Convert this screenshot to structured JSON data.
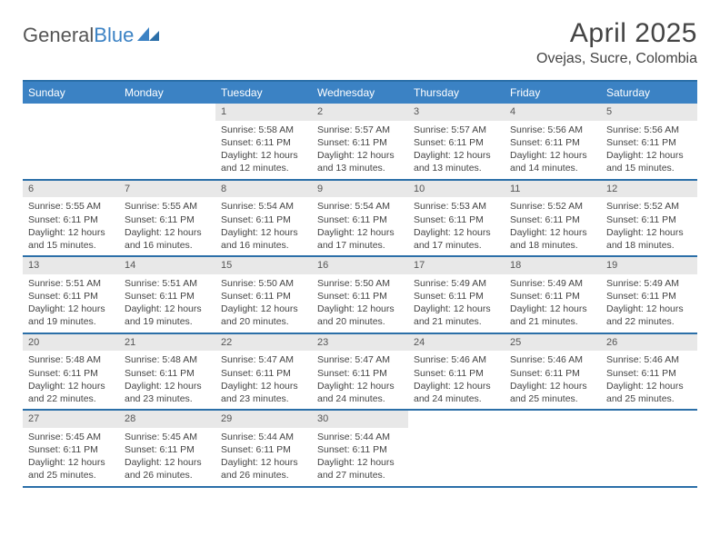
{
  "logo": {
    "part1": "General",
    "part2": "Blue"
  },
  "title": "April 2025",
  "location": "Ovejas, Sucre, Colombia",
  "colors": {
    "header_bg": "#3b82c4",
    "border": "#2b6fa8",
    "daynum_bg": "#e8e8e8",
    "text": "#444444",
    "page_bg": "#ffffff"
  },
  "fonts": {
    "title_size": 30,
    "location_size": 16,
    "dow_size": 12,
    "cell_size": 10.5
  },
  "calendar": {
    "type": "table",
    "columns": [
      "Sunday",
      "Monday",
      "Tuesday",
      "Wednesday",
      "Thursday",
      "Friday",
      "Saturday"
    ],
    "weeks": [
      [
        null,
        null,
        {
          "n": 1,
          "sr": "5:58 AM",
          "ss": "6:11 PM",
          "dl": "12 hours and 12 minutes."
        },
        {
          "n": 2,
          "sr": "5:57 AM",
          "ss": "6:11 PM",
          "dl": "12 hours and 13 minutes."
        },
        {
          "n": 3,
          "sr": "5:57 AM",
          "ss": "6:11 PM",
          "dl": "12 hours and 13 minutes."
        },
        {
          "n": 4,
          "sr": "5:56 AM",
          "ss": "6:11 PM",
          "dl": "12 hours and 14 minutes."
        },
        {
          "n": 5,
          "sr": "5:56 AM",
          "ss": "6:11 PM",
          "dl": "12 hours and 15 minutes."
        }
      ],
      [
        {
          "n": 6,
          "sr": "5:55 AM",
          "ss": "6:11 PM",
          "dl": "12 hours and 15 minutes."
        },
        {
          "n": 7,
          "sr": "5:55 AM",
          "ss": "6:11 PM",
          "dl": "12 hours and 16 minutes."
        },
        {
          "n": 8,
          "sr": "5:54 AM",
          "ss": "6:11 PM",
          "dl": "12 hours and 16 minutes."
        },
        {
          "n": 9,
          "sr": "5:54 AM",
          "ss": "6:11 PM",
          "dl": "12 hours and 17 minutes."
        },
        {
          "n": 10,
          "sr": "5:53 AM",
          "ss": "6:11 PM",
          "dl": "12 hours and 17 minutes."
        },
        {
          "n": 11,
          "sr": "5:52 AM",
          "ss": "6:11 PM",
          "dl": "12 hours and 18 minutes."
        },
        {
          "n": 12,
          "sr": "5:52 AM",
          "ss": "6:11 PM",
          "dl": "12 hours and 18 minutes."
        }
      ],
      [
        {
          "n": 13,
          "sr": "5:51 AM",
          "ss": "6:11 PM",
          "dl": "12 hours and 19 minutes."
        },
        {
          "n": 14,
          "sr": "5:51 AM",
          "ss": "6:11 PM",
          "dl": "12 hours and 19 minutes."
        },
        {
          "n": 15,
          "sr": "5:50 AM",
          "ss": "6:11 PM",
          "dl": "12 hours and 20 minutes."
        },
        {
          "n": 16,
          "sr": "5:50 AM",
          "ss": "6:11 PM",
          "dl": "12 hours and 20 minutes."
        },
        {
          "n": 17,
          "sr": "5:49 AM",
          "ss": "6:11 PM",
          "dl": "12 hours and 21 minutes."
        },
        {
          "n": 18,
          "sr": "5:49 AM",
          "ss": "6:11 PM",
          "dl": "12 hours and 21 minutes."
        },
        {
          "n": 19,
          "sr": "5:49 AM",
          "ss": "6:11 PM",
          "dl": "12 hours and 22 minutes."
        }
      ],
      [
        {
          "n": 20,
          "sr": "5:48 AM",
          "ss": "6:11 PM",
          "dl": "12 hours and 22 minutes."
        },
        {
          "n": 21,
          "sr": "5:48 AM",
          "ss": "6:11 PM",
          "dl": "12 hours and 23 minutes."
        },
        {
          "n": 22,
          "sr": "5:47 AM",
          "ss": "6:11 PM",
          "dl": "12 hours and 23 minutes."
        },
        {
          "n": 23,
          "sr": "5:47 AM",
          "ss": "6:11 PM",
          "dl": "12 hours and 24 minutes."
        },
        {
          "n": 24,
          "sr": "5:46 AM",
          "ss": "6:11 PM",
          "dl": "12 hours and 24 minutes."
        },
        {
          "n": 25,
          "sr": "5:46 AM",
          "ss": "6:11 PM",
          "dl": "12 hours and 25 minutes."
        },
        {
          "n": 26,
          "sr": "5:46 AM",
          "ss": "6:11 PM",
          "dl": "12 hours and 25 minutes."
        }
      ],
      [
        {
          "n": 27,
          "sr": "5:45 AM",
          "ss": "6:11 PM",
          "dl": "12 hours and 25 minutes."
        },
        {
          "n": 28,
          "sr": "5:45 AM",
          "ss": "6:11 PM",
          "dl": "12 hours and 26 minutes."
        },
        {
          "n": 29,
          "sr": "5:44 AM",
          "ss": "6:11 PM",
          "dl": "12 hours and 26 minutes."
        },
        {
          "n": 30,
          "sr": "5:44 AM",
          "ss": "6:11 PM",
          "dl": "12 hours and 27 minutes."
        },
        null,
        null,
        null
      ]
    ],
    "labels": {
      "sunrise": "Sunrise:",
      "sunset": "Sunset:",
      "daylight": "Daylight:"
    }
  }
}
